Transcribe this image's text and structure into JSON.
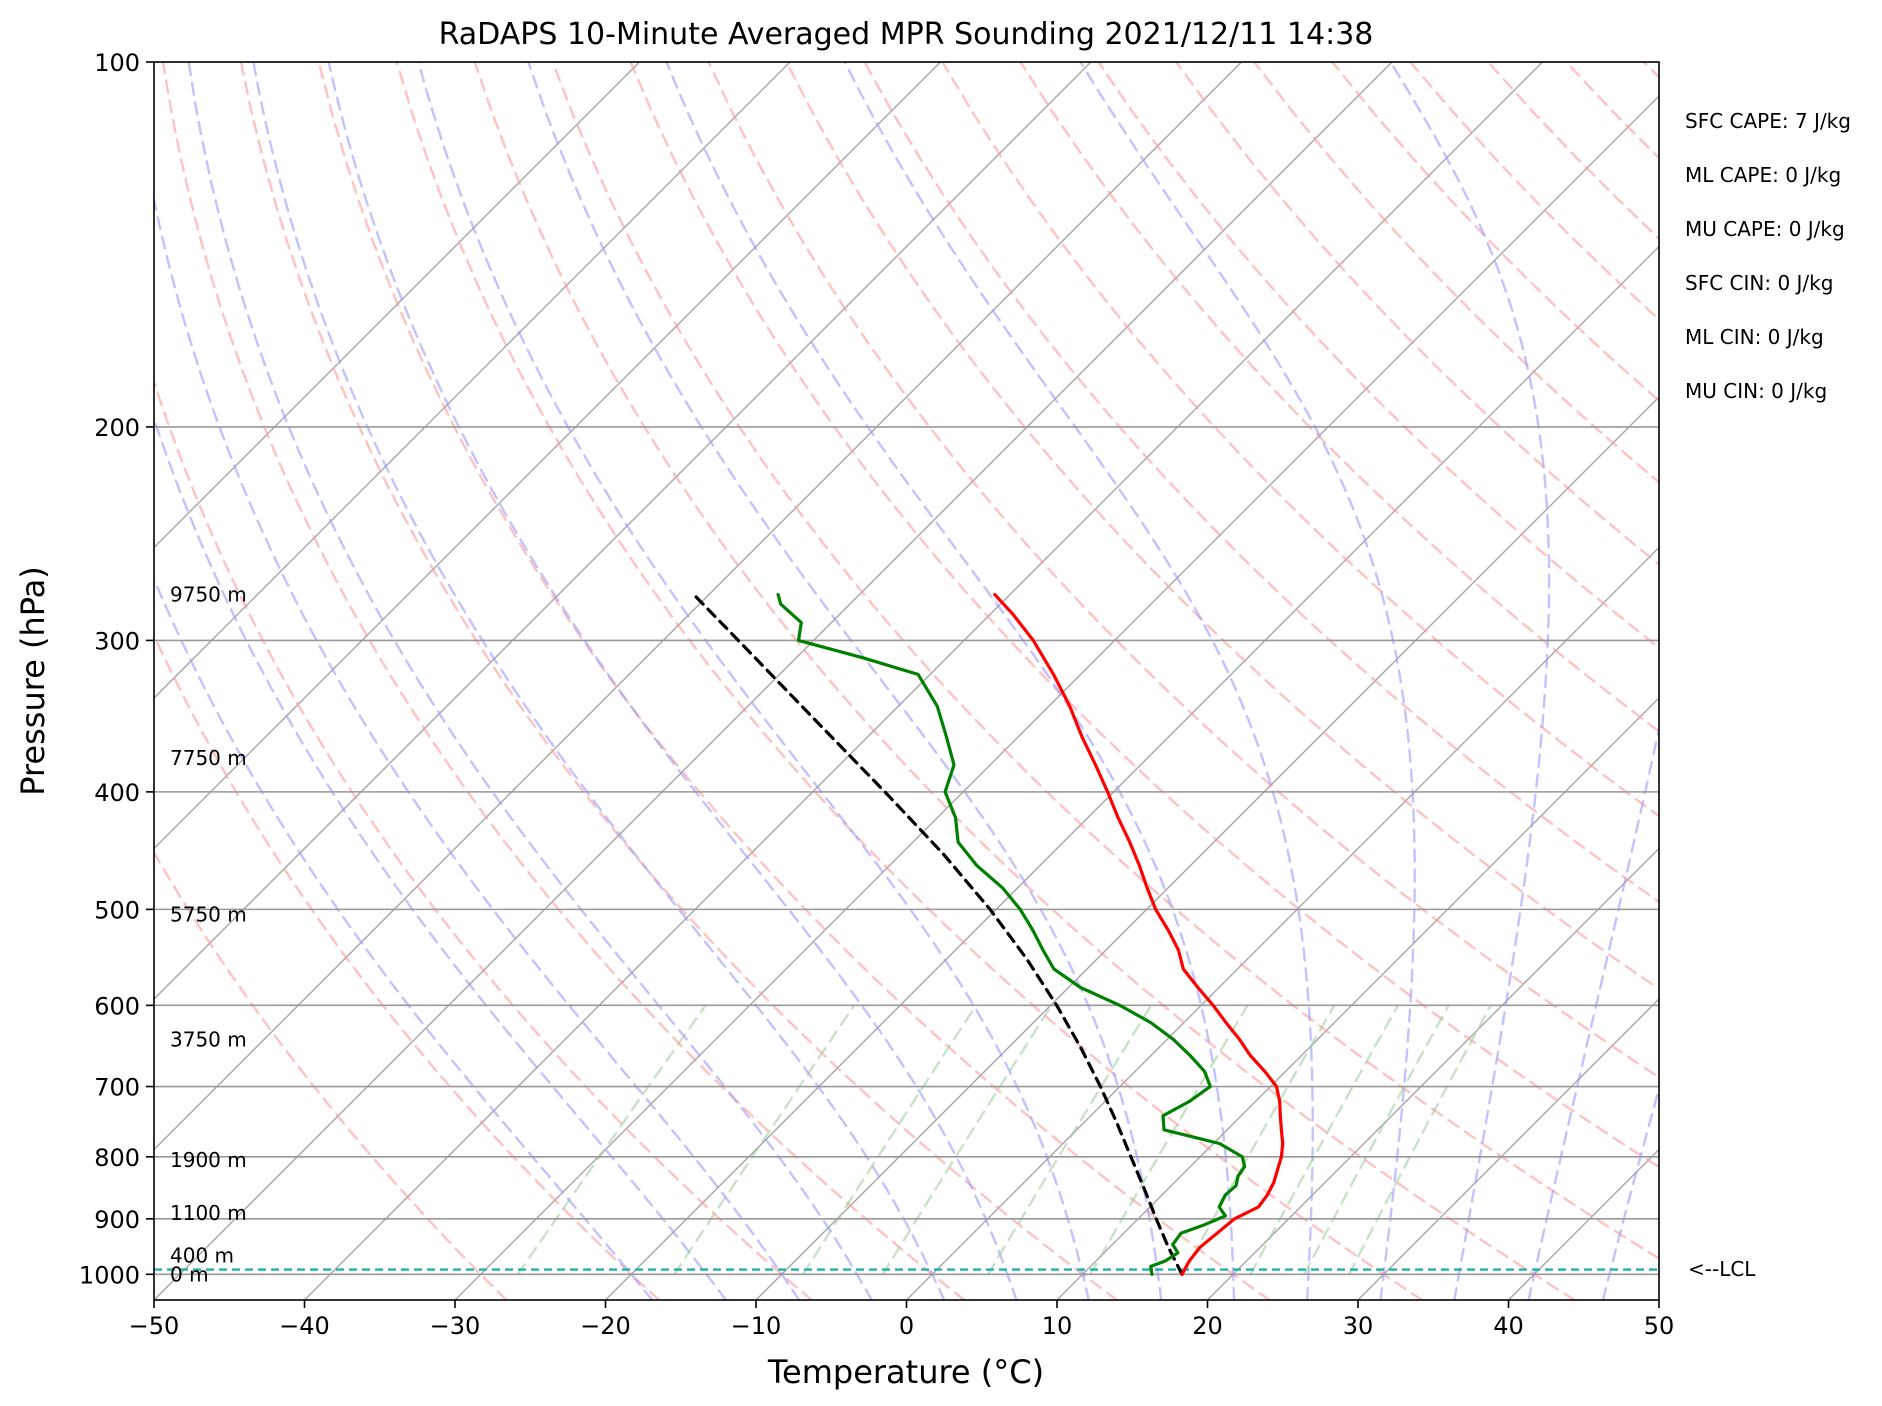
{
  "chart_data": {
    "type": "skew-t",
    "title": "RaDAPS 10-Minute Averaged MPR Sounding 2021/12/11 14:38",
    "xlabel": "Temperature (°C)",
    "ylabel": "Pressure (hPa)",
    "xlim": [
      -50,
      50
    ],
    "ylim": [
      1050,
      100
    ],
    "y_scale": "log",
    "grid": true,
    "x_ticks": [
      "−50",
      "−40",
      "−30",
      "−20",
      "−10",
      "0",
      "10",
      "20",
      "30",
      "40",
      "50"
    ],
    "y_ticks": [
      "100",
      "200",
      "300",
      "400",
      "500",
      "600",
      "700",
      "800",
      "900",
      "1000"
    ],
    "skew_slope_C_per_axis_fraction": 0.0,
    "isotherm_labels": [],
    "height_labels": [
      {
        "text": "9750 m",
        "p": 275
      },
      {
        "text": "7750 m",
        "p": 375
      },
      {
        "text": "5750 m",
        "p": 505
      },
      {
        "text": "3750 m",
        "p": 640
      },
      {
        "text": "1900 m",
        "p": 805
      },
      {
        "text": "1100 m",
        "p": 890
      },
      {
        "text": "400 m",
        "p": 965
      },
      {
        "text": "0 m",
        "p": 1000
      }
    ],
    "temperature": {
      "color": "#ff0000",
      "p": [
        1000,
        975,
        950,
        925,
        900,
        880,
        860,
        840,
        820,
        800,
        780,
        760,
        740,
        720,
        700,
        680,
        660,
        640,
        620,
        600,
        580,
        560,
        540,
        520,
        500,
        480,
        460,
        440,
        420,
        400,
        380,
        360,
        340,
        320,
        300,
        285,
        275
      ],
      "t": [
        16.6,
        16.2,
        16.0,
        16.2,
        16.4,
        17.2,
        17.0,
        16.6,
        16.0,
        15.4,
        14.6,
        13.6,
        12.6,
        11.6,
        10.4,
        8.6,
        6.6,
        4.8,
        2.8,
        0.8,
        -1.4,
        -3.6,
        -5.2,
        -7.2,
        -9.4,
        -11.4,
        -13.4,
        -15.6,
        -18.0,
        -20.4,
        -23.0,
        -25.8,
        -28.6,
        -31.8,
        -35.4,
        -38.6,
        -41.0
      ]
    },
    "dewpoint": {
      "color": "#008000",
      "p": [
        1000,
        985,
        975,
        960,
        945,
        925,
        910,
        895,
        880,
        860,
        845,
        830,
        815,
        800,
        780,
        760,
        740,
        720,
        700,
        680,
        660,
        640,
        620,
        600,
        580,
        560,
        540,
        520,
        500,
        480,
        460,
        440,
        420,
        400,
        380,
        360,
        340,
        320,
        310,
        300,
        290,
        280,
        275
      ],
      "t": [
        14.6,
        14.0,
        14.6,
        14.9,
        14.0,
        13.8,
        14.8,
        15.6,
        14.6,
        14.2,
        14.3,
        13.8,
        13.6,
        12.8,
        10.4,
        5.8,
        4.8,
        5.6,
        6.0,
        4.6,
        2.6,
        0.4,
        -2.2,
        -5.4,
        -9.2,
        -12.2,
        -14.2,
        -16.2,
        -18.4,
        -21.0,
        -24.2,
        -27.0,
        -28.8,
        -31.2,
        -32.4,
        -34.8,
        -37.4,
        -40.8,
        -45.6,
        -51.0,
        -52.0,
        -54.6,
        -55.4
      ]
    },
    "parcel": {
      "color": "#000000",
      "style": "dashed",
      "p": [
        1000,
        950,
        900,
        850,
        800,
        750,
        700,
        650,
        600,
        550,
        500,
        450,
        400,
        350,
        300,
        275
      ],
      "t": [
        16.6,
        13.9,
        11.2,
        8.4,
        5.4,
        2.2,
        -1.3,
        -5.2,
        -9.6,
        -14.6,
        -20.4,
        -27.2,
        -35.2,
        -44.4,
        -55.0,
        -61.0
      ]
    },
    "lcl": {
      "p": 991,
      "label": "<--LCL",
      "color": "#20b2aa"
    },
    "annotations": [
      "SFC CAPE: 7 J/kg",
      "ML CAPE: 0 J/kg",
      "MU CAPE: 0 J/kg",
      "SFC CIN: 0 J/kg",
      "ML CIN: 0 J/kg",
      "MU CIN: 0 J/kg"
    ],
    "background_lines": {
      "isotherm_color": "#808080",
      "dry_adiabat_color": "#ff9999",
      "moist_adiabat_color": "#9999ff",
      "mixing_ratio_color": "#99cc99"
    }
  }
}
